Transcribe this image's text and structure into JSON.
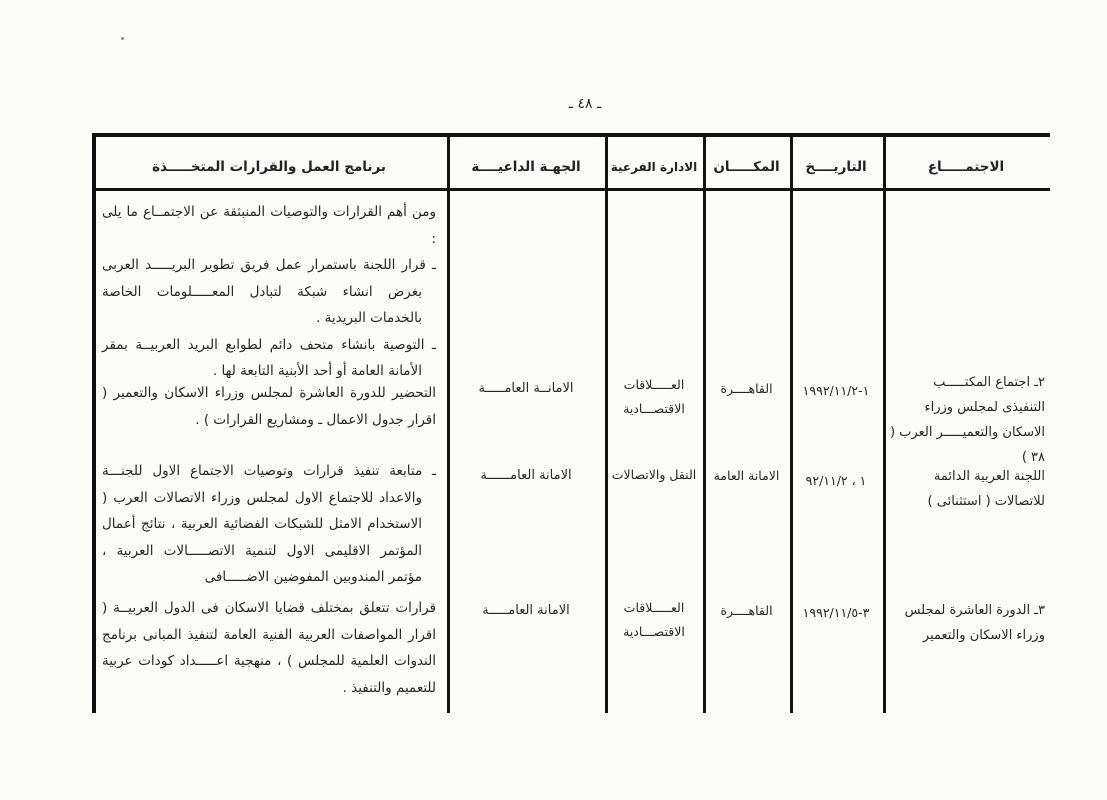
{
  "colors": {
    "paper": "#fcfcf9",
    "ink": "#262626",
    "rule": "#121212"
  },
  "page": {
    "number_label": "ـ ٤٨ ـ"
  },
  "table": {
    "headers": {
      "meeting": "الاجتمـــــاع",
      "date": "التاريــــخ",
      "place": "المكـــــان",
      "sub_admin": "الادارة الفرعية",
      "entity": "الجهـة الداعيــــة",
      "program": "برنامج العمل والقرارات المتخـــــذة"
    },
    "intro": {
      "p1": "ومن أهم القرارات والتوصيات المنبثقة عن الاجتمــاع ما يلى :",
      "p2": "ـ قرار اللجنة باستمرار عمل فريق تطوير البريـــــد العربى بغرض انشاء شبكة لتبادل المعـــــلومات الخاصة بالخدمات البريدية .",
      "p3": "ـ التوصية بانشاء متحف دائم لطوابع البريد العربيــة بمقر الأمانة العامة أو أحد الأبنية التابعة لها ."
    },
    "rows": [
      {
        "meeting": "٢ـ اجتماع المكتـــــب التنفيذى لمجلس وزراء الاسكان والتعميـــــر العرب ( ٣٨ )",
        "date": "١٩٩٢/١١/٢-١",
        "place": "القاهــــرة",
        "sub_admin": "العـــــلاقات الاقتصـــادية",
        "entity": "الامانــة العامـــــة",
        "program": "التحضير للدورة العاشرة لمجلس وزراء الاسكان والتعمير ( اقرار جدول الاعمال ـ ومشاريع القرارات ) ."
      },
      {
        "meeting": "اللجنة العربية الدائمة للاتصالات ( استثنائى )",
        "date": "٩٢/١١/٢ ، ١",
        "place": "الامانة العامة",
        "sub_admin": "النقل والاتصالات",
        "entity": "الامانة العامــــــة",
        "program": "ـ متابعة تنفيذ قرارات وتوصيات الاجتماع الاول للجنـــة والاعداد للاجتماع الاول لمجلس وزراء الاتصالات العرب ( الاستخدام الامثل للشبكات الفضائية العربية ، نتائج أعمال المؤتمر الاقليمى الاول لتنمية الاتصـــــالات العربية ، مؤتمر المندوبين المفوضين الاضـــــافى"
      },
      {
        "meeting": "٣ـ الدورة العاشرة لمجلس وزراء الاسكان والتعمير",
        "date": "١٩٩٢/١١/٥-٣",
        "place": "القاهــــرة",
        "sub_admin": "العـــــلاقات الاقتصـــادية",
        "entity": "الامانة العامـــــة",
        "program": "قرارات تتعلق بمختلف قضايا الاسكان فى الدول العربيــة ( اقرار المواصفات العربية الفنية العامة لتنفيذ المبانى برنامج الندوات العلمية للمجلس ) ، منهجية اعـــــداد كودات عربية للتعميم والتنفيذ ."
      }
    ]
  }
}
